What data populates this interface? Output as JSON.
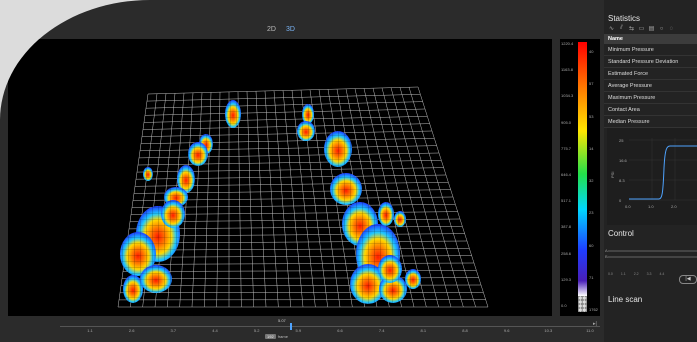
{
  "viewer": {
    "mode_2d": "2D",
    "mode_3d": "3D",
    "active_mode": "3D"
  },
  "colorbar": {
    "left_labels": [
      "1220.4",
      "1163.8",
      "1034.3",
      "905.0",
      "775.7",
      "646.4",
      "517.1",
      "387.8",
      "258.6",
      "129.3",
      "0.0"
    ],
    "right_labels": [
      "40",
      "57",
      "53",
      "14",
      "32",
      "23",
      "60",
      "71",
      "1762"
    ],
    "colors": [
      "#ff0000",
      "#ff7a00",
      "#ffe600",
      "#22e04a",
      "#00d6ff",
      "#1f3dff",
      "#4a1fb8",
      "#ffffff"
    ]
  },
  "timeline": {
    "current_value": "5.07",
    "ticks": [
      "1.1",
      "2.6",
      "3.7",
      "4.4",
      "5.2",
      "5.9",
      "6.6",
      "7.4",
      "8.1",
      "8.8",
      "9.6",
      "10.3",
      "11.0"
    ],
    "frame_box": "192",
    "frame_label": "frame",
    "end_marker": "▸|",
    "progress": 0.4
  },
  "statistics": {
    "title": "Statistics",
    "header": "Name",
    "rows": [
      "Minimum Pressure",
      "Standard Pressure Deviation",
      "Estimated Force",
      "Average Pressure",
      "Maximum Pressure",
      "Contact Area",
      "Median Pressure"
    ],
    "tools": [
      "∿",
      "⫽",
      "⇆",
      "▭",
      "▤",
      "○",
      "◌"
    ]
  },
  "mini_chart": {
    "ylabel": "PSI",
    "y_ticks": [
      "25",
      "16.6",
      "8.3",
      "0"
    ],
    "x_ticks": [
      "0.0",
      "1.0",
      "2.0"
    ]
  },
  "control": {
    "title": "Control",
    "labels": [
      "A",
      "B"
    ],
    "ticks": [
      "0.0",
      "1.1",
      "2.2",
      "3.3",
      "4.4"
    ],
    "play_symbol": "|◀"
  },
  "line_scan": {
    "title": "Line scan"
  }
}
